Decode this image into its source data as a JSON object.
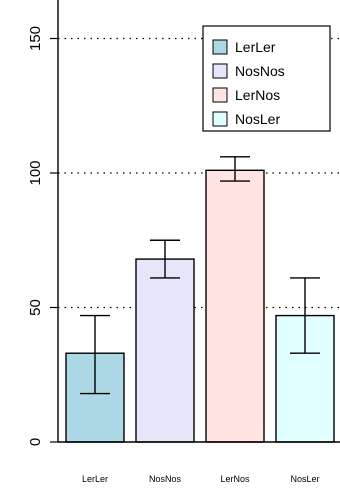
{
  "chart_data": {
    "type": "bar",
    "categories": [
      "LerLer",
      "NosNos",
      "LerNos",
      "NosLer"
    ],
    "values": [
      33,
      68,
      101,
      47
    ],
    "error_low": [
      18,
      61,
      97,
      33
    ],
    "error_high": [
      47,
      75,
      106,
      61
    ],
    "colors": [
      "#ADD8E6",
      "#E6E6FA",
      "#FFE4E1",
      "#E0FFFF"
    ],
    "ylim": [
      0,
      163
    ],
    "y_ticks": [
      "0",
      "50",
      "100",
      "150"
    ],
    "y_tick_values": [
      0,
      50,
      100,
      150
    ],
    "gridlines_at": [
      50,
      100,
      150
    ],
    "grid": "dotted horizontal",
    "legend": {
      "placement": "top-right",
      "entries": [
        "LerLer",
        "NosNos",
        "LerNos",
        "NosLer"
      ]
    }
  }
}
